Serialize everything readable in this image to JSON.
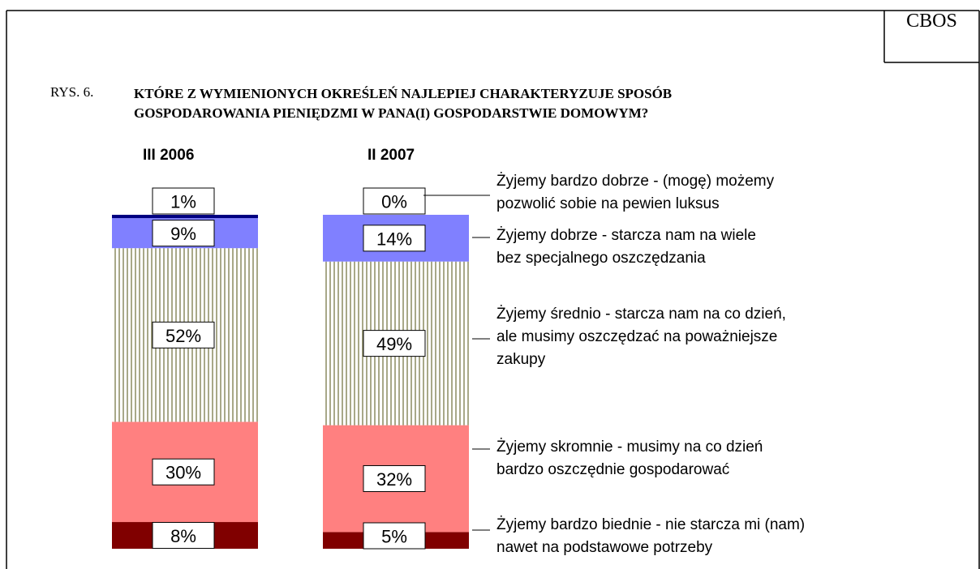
{
  "source": "CBOS",
  "figure_number": "RYS. 6.",
  "chart_data": {
    "type": "stacked_bar",
    "title": "KTÓRE Z WYMIENIONYCH OKREŚLEŃ NAJLEPIEJ CHARAKTERYZUJE SPOSÓB\nGOSPODAROWANIA PIENIĘDZMI W PANA(I) GOSPODARSTWIE DOMOWYM?",
    "categories": [
      "III 2006",
      "II 2007"
    ],
    "ylim": [
      0,
      100
    ],
    "series": [
      {
        "name": "Żyjemy bardzo dobrze - (mogę) możemy\npozwolić sobie na pewien luksus",
        "color": "#000080",
        "values": [
          1,
          0
        ],
        "value_labels": [
          "1%",
          "0%"
        ]
      },
      {
        "name": "Żyjemy dobrze - starcza nam na wiele\nbez specjalnego oszczędzania",
        "color": "#8080ff",
        "values": [
          9,
          14
        ],
        "value_labels": [
          "9%",
          "14%"
        ]
      },
      {
        "name": "Żyjemy średnio - starcza nam na co dzień,\nale musimy oszczędzać na poważniejsze\nzakupy",
        "color": "#8c8c60",
        "pattern": "vertical-lines",
        "values": [
          52,
          49
        ],
        "value_labels": [
          "52%",
          "49%"
        ]
      },
      {
        "name": "Żyjemy skromnie - musimy na co dzień\nbardzo oszczędnie gospodarować",
        "color": "#ff8080",
        "values": [
          30,
          32
        ],
        "value_labels": [
          "30%",
          "32%"
        ]
      },
      {
        "name": "Żyjemy bardzo biednie - nie starcza mi (nam)\nnawet na podstawowe potrzeby",
        "color": "#800000",
        "values": [
          8,
          5
        ],
        "value_labels": [
          "8%",
          "5%"
        ]
      }
    ]
  }
}
